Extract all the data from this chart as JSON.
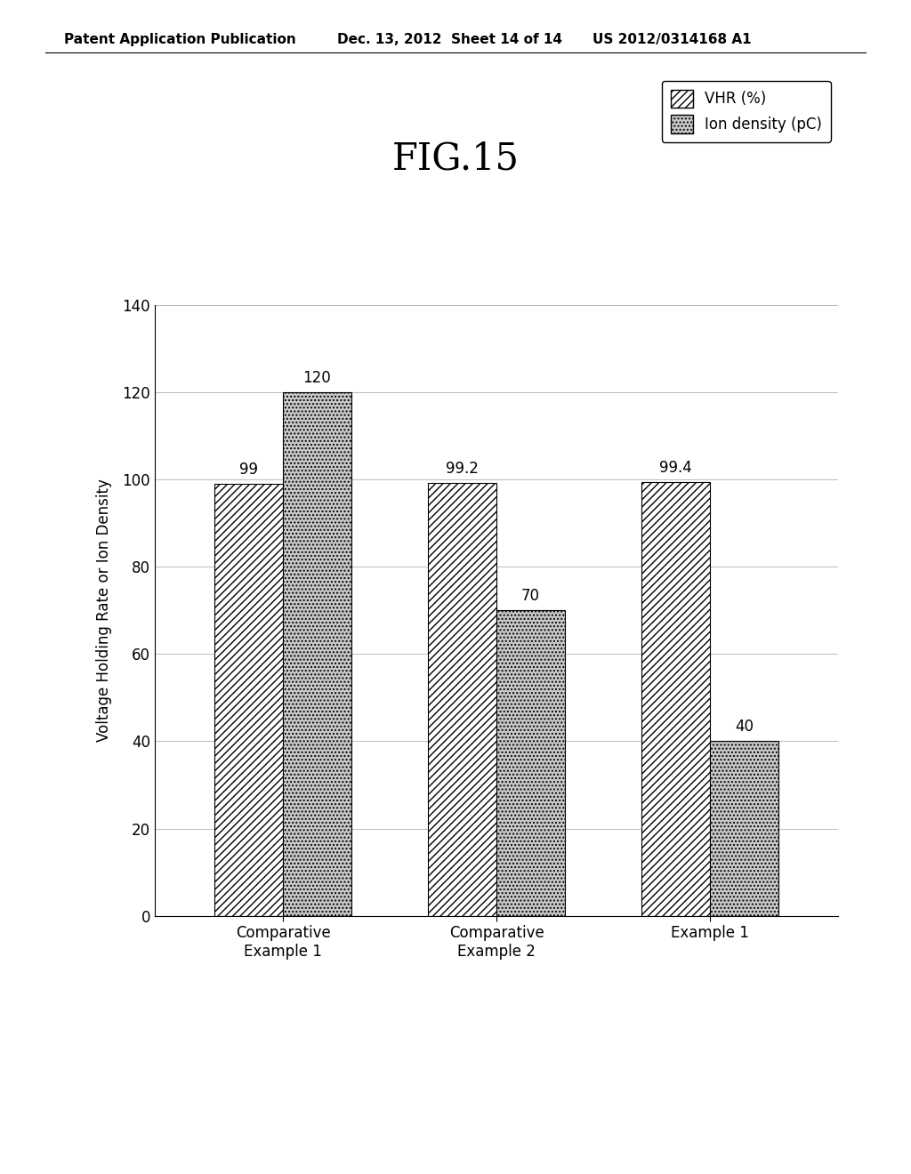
{
  "title": "FIG.15",
  "header_left": "Patent Application Publication",
  "header_mid": "Dec. 13, 2012  Sheet 14 of 14",
  "header_right": "US 2012/0314168 A1",
  "ylabel": "Voltage Holding Rate or Ion Density",
  "categories": [
    "Comparative\nExample 1",
    "Comparative\nExample 2",
    "Example 1"
  ],
  "vhr_values": [
    99,
    99.2,
    99.4
  ],
  "ion_values": [
    120,
    70,
    40
  ],
  "ylim": [
    0,
    140
  ],
  "yticks": [
    0,
    20,
    40,
    60,
    80,
    100,
    120,
    140
  ],
  "legend_labels": [
    "VHR (%)",
    "Ion density (pC)"
  ],
  "background_color": "#ffffff",
  "bar_width": 0.32,
  "title_fontsize": 30,
  "axis_fontsize": 12,
  "tick_fontsize": 12,
  "label_fontsize": 12,
  "header_fontsize": 11
}
